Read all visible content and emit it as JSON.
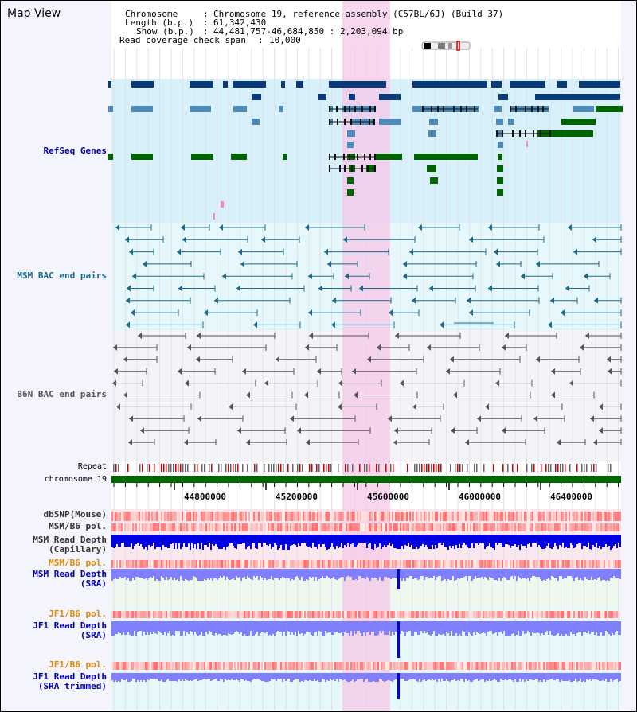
{
  "app_title": "Map View",
  "info": {
    "chromosome_label": "Chromosome",
    "chromosome_value": "Chromosome 19, reference assembly (C57BL/6J) (Build 37)",
    "length_label": "Length (b.p.)",
    "length_value": "61,342,430",
    "show_label": "Show (b.p.)",
    "show_value": "44,481,757-46,684,850 : 2,203,094 bp",
    "coverage_label": "Read coverage check span",
    "coverage_value": "10,000"
  },
  "tracks": {
    "refseq": "RefSeq Genes",
    "msm_bac": "MSM BAC end pairs",
    "b6n_bac": "B6N BAC end pairs",
    "repeat": "Repeat",
    "chromosome": "chromosome 19",
    "dbsnp": "dbSNP(Mouse)",
    "msm_b6_pol": "MSM/B6 pol.",
    "msm_depth_cap_1": "MSM Read Depth",
    "msm_depth_cap_2": "(Capillary)",
    "msm_b6_pol_2": "MSM/B6 pol.",
    "msm_depth_sra_1": "MSM Read Depth",
    "msm_depth_sra_2": "(SRA)",
    "jf1_b6_pol": "JF1/B6 pol.",
    "jf1_depth_sra_1": "JF1 Read Depth",
    "jf1_depth_sra_2": "(SRA)",
    "jf1_b6_pol_2": "JF1/B6 pol.",
    "jf1_depth_trim_1": "JF1 Read Depth",
    "jf1_depth_trim_2": "(SRA trimmed)"
  },
  "axis": {
    "ticks": [
      "44800000",
      "45200000",
      "45600000",
      "46000000",
      "46400000"
    ]
  },
  "colors": {
    "gene_dark": "#0a3a78",
    "gene_mid": "#4d8ab8",
    "gene_green": "#006400",
    "msm_bac": "#1b6a8a",
    "b6n_bac": "#555555",
    "depth_blue": "#0000e0",
    "depth_light": "#8080ff",
    "highlight": "#f5c8e8",
    "label_blue": "#0000b0",
    "label_orange": "#e08a00"
  }
}
